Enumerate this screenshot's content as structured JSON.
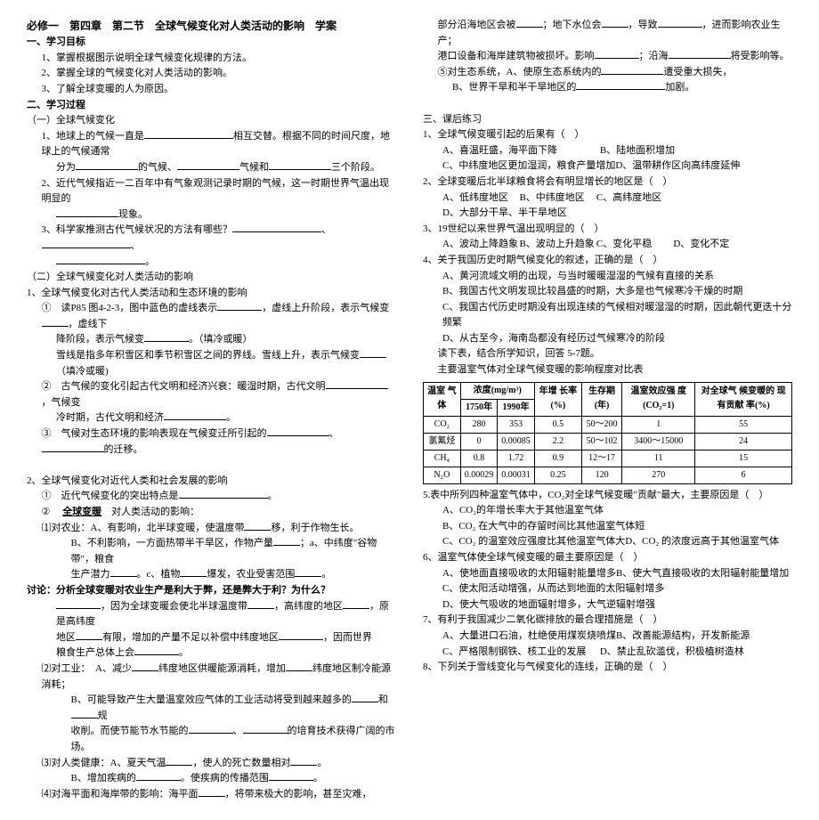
{
  "header": {
    "title": "必修一　第四章　第二节　全球气候变化对人类活动的影响　学案"
  },
  "left": {
    "obj_head": "一、学习目标",
    "obj1": "1、掌握根据图示说明全球气候变化规律的方法。",
    "obj2": "2、掌握全球的气候变化对人类活动的影响。",
    "obj3": "3、了解全球变暖的人为原因。",
    "proc_head": "二、学习过程",
    "p1": "（一）全球气候变化",
    "p1_1a": "1、地球上的气候一直是",
    "p1_1b": "相互交替。根据不同的时间尺度，地球上的气候通常",
    "p1_1c": "分为",
    "p1_1d": "的气候、",
    "p1_1e": "气候和",
    "p1_1f": "三个阶段。",
    "p1_2a": "2、近代气候指近一二百年中有气象观测记录时期的气候，这一时期世界气温出现明显的",
    "p1_2b": "现象。",
    "p1_3a": "3、科学家推测古代气候状况的方法有哪些？",
    "p1_3b": "。",
    "p2": "（二）全球气候变化对人类活动的影响",
    "p2_1": "1、全球气候变化对古代人类活动和生态环境的影响",
    "p2_1_1a": "①　读P85 图4-2-3，图中蓝色的虚线表示",
    "p2_1_1b": "，虚线上升阶段，表示气候变",
    "p2_1_1c": "，虚线下",
    "p2_1_1d": "降阶段，表示气候变",
    "p2_1_1e": "。（填冷或暖）",
    "p2_1_1f": "雪线是指多年积雪区和季节积雪区之间的界线。雪线上升，表示气候变",
    "p2_1_1g": "（填冷或暖)",
    "p2_1_2a": "②　古气候的变化引起古代文明和经济兴衰：暖湿时期，古代文明",
    "p2_1_2b": "，气候变",
    "p2_1_2c": "冷时期，古代文明和经济",
    "p2_1_2d": "。",
    "p2_1_3a": "③　气候对生态环境的影响表现在气候变迁所引起的",
    "p2_1_3b": "、",
    "p2_1_3c": "的迁移。",
    "p3": "2、全球气候变化对近代人类和社会发展的影响",
    "p3_1a": "①　近代气候变化的突出特点是",
    "p3_1b": "。",
    "p3_2": "② 　全球变暖  对人类活动的影响：",
    "p3_2label": "全球变暖",
    "agr_a": "⑴对农业：A、有影响，北半球变暖，使温度带",
    "agr_b": "移，利于作物生长。",
    "agr_c": "B、不利影响，一方面热带半干旱区，作物产量",
    "agr_d": "；a、中纬度\"谷物带\"，粮食",
    "agr_e": "生产潜力",
    "agr_f": "。c、植物",
    "agr_g": "爆发，农业受害范围",
    "agr_h": "。",
    "discuss": "讨论：分析全球变暖对农业生产是利大于弊，还是弊大于利？为什么？",
    "discuss_a": "，因为全球变暖会使北半球温度带",
    "discuss_b": "，高纬度的地区",
    "discuss_c": "，原是高纬度",
    "discuss_d": "地区",
    "discuss_e": "有限，增加的产量不足以补偿中纬度地区",
    "discuss_f": "，因而世界",
    "discuss_g": "粮食生产总体上会",
    "discuss_h": "。",
    "ind_a": "⑵对工业：　A、减少",
    "ind_b": "纬度地区供暖能源消耗，增加",
    "ind_c": "纬度地区制冷能源消耗；",
    "ind_d": "B、可能导致产生大量温室效应气体的工业活动将受到越来越多的",
    "ind_e": "和",
    "ind_f": "规",
    "ind_g": "收削。而使节能节水节能的",
    "ind_h": "、",
    "ind_i": "的培育技术获得广阔的市场。",
    "health_a": "⑶对人类健康：A、夏天气温",
    "health_b": "，使人的死亡数量相对",
    "health_c": "。",
    "health_d": "B、增加疾病的",
    "health_e": "。使疾病的传播范围",
    "health_f": "。",
    "sea_a": "⑷对海平面和海岸带的影响：海平面",
    "sea_b": "，将带来极大的影响，甚至灾难，"
  },
  "right": {
    "sea_c": "部分沿海地区会被",
    "sea_d": "；地下水位会",
    "sea_e": "，导致",
    "sea_f": "，进而影响农业生",
    "sea_g": "产；",
    "sea_h": "港口设备和海岸建筑物被损坏。影响",
    "sea_i": "；沿海",
    "sea_j": "将受影响等。",
    "eco_a": "⑤对生态系统，A、使原生态系统内的",
    "eco_b": "遭受重大损失，",
    "eco_c": "B、世界干旱和半干旱地区的",
    "eco_d": "加剧。",
    "hw_head": "三、课后练习",
    "q1": "1、全球气候变暖引起的后果有（　）",
    "q1a": "A、喜温旺盛，海平面下降",
    "q1b": "B、陆地面积增加",
    "q1c": "C、中纬度地区更加湿润，粮食产量增加",
    "q1d": "D、温带耕作区向高纬度延伸",
    "q2": "2、全球变暖后北半球粮食将会有明显增长的地区是（　）",
    "q2a": "A、低纬度地区",
    "q2b": "B、中纬度地区",
    "q2c": "C、高纬度地区",
    "q2d": "D、大部分干旱、半干旱地区",
    "q3": "3、19世纪以来世界气温出现明显的（　）",
    "q3a": "A、波动上降趋象",
    "q3b": "B、波动上升趋象",
    "q3c": "C、变化平稳",
    "q3d": "D、变化不定",
    "q4": "4、关于我国历史时期气候变化的叙述，正确的是（　）",
    "q4a": "A、黄河流域文明的出现，与当时暖暖湿湿的气候有直接的关系",
    "q4b": "B、我国古代文明发现比较昌盛的时期，大多是也气候寒冷干燥的时期",
    "q4c": "C、我国古代历史时期没有出现连续的气候相对暖湿湿的时期，因此朝代更迭十分频繁",
    "q4d": "D、从古至今，海南岛都没有经历过气候寒冷的阶段",
    "q5head": "读下表，结合所学知识，回答 5-7题。",
    "q5title": "主要温室气体对全球气候变暖的影响程度对比表",
    "table": {
      "headers": [
        "温室\n气体",
        "浓度(mg/m³)",
        "年增\n长率\n(%)",
        "生存期\n(年)",
        "温室效应强\n度(CO₂=1)",
        "对全球气\n候变暖的\n现有贡献\n率(%)"
      ],
      "subheaders": [
        "1750年",
        "1990年"
      ],
      "rows": [
        [
          "CO₂",
          "280",
          "353",
          "0.5",
          "50～200",
          "1",
          "55"
        ],
        [
          "氯氟烃",
          "0",
          "0.00085",
          "2.2",
          "50～102",
          "3400～15000",
          "24"
        ],
        [
          "CH₄",
          "0.8",
          "1.72",
          "0.9",
          "12～17",
          "11",
          "15"
        ],
        [
          "N₂O",
          "0.00029",
          "0.00031",
          "0.25",
          "120",
          "270",
          "6"
        ]
      ]
    },
    "q5": "5.表中所列四种温室气体中，CO₂对全球气候变暖\"贡献\"最大，主要原因是（　）",
    "q5a": "A、CO₂的年增长率大于其他温室气体",
    "q5b": "B、CO₂ 在大气中的存留时间比其他温室气体短",
    "q5c": "C、CO₂ 的温室效应强度比其他温室气体大",
    "q5d": "D、CO₂ 的浓度远高于其他温室气体",
    "q6": "6、温室气体使全球气候变暖的最主要原因是（　）",
    "q6a": "A、使地面直接吸收的太阳辐射能量增多",
    "q6b": "B、使大气直接吸收的太阳辐射能量增加",
    "q6c": "C、使太阳活动增强，从而达到地面的太阳辐射增多",
    "q6d": "D、使大气吸收的地面辐射增多，大气逆辐射增强",
    "q7": "7、有利于我国减少二氧化碳排放的最合理措施是（　）",
    "q7a": "A、大量进口石油，杜绝使用煤炭烧喷煤",
    "q7b": "B、改善能源结构，开发新能源",
    "q7c": "C、严格限制钢铁、核工业的发展",
    "q7d": "D、禁止乱砍滥伐，积极植树造林",
    "q8": "8、下列关于雪线变化与气候变化的连线，正确的是（　）"
  }
}
